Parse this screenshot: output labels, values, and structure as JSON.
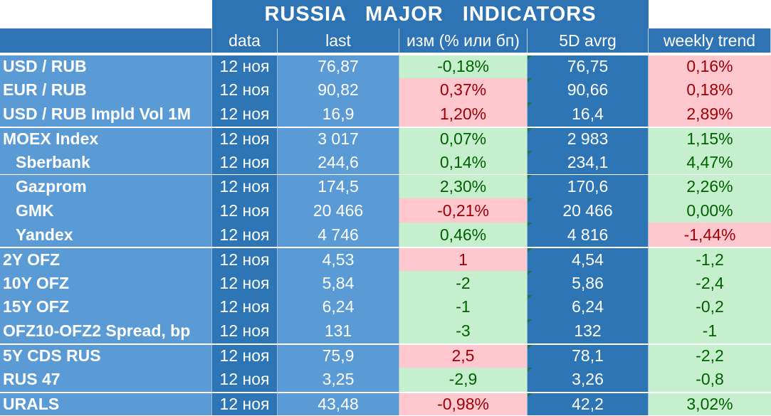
{
  "title": "RUSSIA   MAJOR   INDICATORS",
  "headers": [
    "data",
    "last",
    "изм (% или бп)",
    "5D avrg",
    "weekly trend"
  ],
  "rows": [
    {
      "name": "USD / RUB",
      "date": "12 ноя",
      "last": "76,87",
      "change": "-0,18%",
      "change_state": "green",
      "avg": "76,75",
      "trend": "0,16%",
      "trend_state": "red",
      "indent": false,
      "group_start": true
    },
    {
      "name": "EUR / RUB",
      "date": "12 ноя",
      "last": "90,82",
      "change": "0,37%",
      "change_state": "red",
      "avg": "90,66",
      "trend": "0,18%",
      "trend_state": "red",
      "indent": false,
      "group_start": false
    },
    {
      "name": "USD / RUB Impld Vol 1M",
      "date": "12 ноя",
      "last": "16,9",
      "change": "1,20%",
      "change_state": "red",
      "avg": "16,4",
      "trend": "2,89%",
      "trend_state": "red",
      "indent": false,
      "group_start": false
    },
    {
      "name": "MOEX Index",
      "date": "12 ноя",
      "last": "3 017",
      "change": "0,07%",
      "change_state": "green",
      "avg": "2 983",
      "trend": "1,15%",
      "trend_state": "green",
      "indent": false,
      "group_start": true
    },
    {
      "name": "Sberbank",
      "date": "12 ноя",
      "last": "244,6",
      "change": "0,14%",
      "change_state": "green",
      "avg": "234,1",
      "trend": "4,47%",
      "trend_state": "green",
      "indent": true,
      "group_start": false
    },
    {
      "name": "Gazprom",
      "date": "12 ноя",
      "last": "174,5",
      "change": "2,30%",
      "change_state": "green",
      "avg": "170,6",
      "trend": "2,26%",
      "trend_state": "green",
      "indent": true,
      "group_start": false
    },
    {
      "name": "GMK",
      "date": "12 ноя",
      "last": "20 466",
      "change": "-0,21%",
      "change_state": "red",
      "avg": "20 466",
      "trend": "0,00%",
      "trend_state": "green",
      "indent": true,
      "group_start": false
    },
    {
      "name": "Yandex",
      "date": "12 ноя",
      "last": "4 746",
      "change": "0,46%",
      "change_state": "green",
      "avg": "4 816",
      "trend": "-1,44%",
      "trend_state": "red",
      "indent": true,
      "group_start": false
    },
    {
      "name": "2Y OFZ",
      "date": "12 ноя",
      "last": "4,53",
      "change": "1",
      "change_state": "red",
      "avg": "4,54",
      "trend": "-1,2",
      "trend_state": "green",
      "indent": false,
      "group_start": true
    },
    {
      "name": "10Y OFZ",
      "date": "12 ноя",
      "last": "5,84",
      "change": "-2",
      "change_state": "green",
      "avg": "5,86",
      "trend": "-2,4",
      "trend_state": "green",
      "indent": false,
      "group_start": false
    },
    {
      "name": "15Y OFZ",
      "date": "12 ноя",
      "last": "6,24",
      "change": "-1",
      "change_state": "green",
      "avg": "6,24",
      "trend": "-0,2",
      "trend_state": "green",
      "indent": false,
      "group_start": false
    },
    {
      "name": "OFZ10-OFZ2 Spread, bp",
      "date": "12 ноя",
      "last": "131",
      "change": "-3",
      "change_state": "green",
      "avg": "132",
      "trend": "-1",
      "trend_state": "green",
      "indent": false,
      "group_start": false
    },
    {
      "name": "5Y CDS RUS",
      "date": "12 ноя",
      "last": "75,9",
      "change": "2,5",
      "change_state": "red",
      "avg": "78,1",
      "trend": "-2,2",
      "trend_state": "green",
      "indent": false,
      "group_start": true
    },
    {
      "name": "RUS 47",
      "date": "12 ноя",
      "last": "3,25",
      "change": "-2,9",
      "change_state": "green",
      "avg": "3,26",
      "trend": "-0,8",
      "trend_state": "green",
      "indent": false,
      "group_start": false
    },
    {
      "name": "URALS",
      "date": "12 ноя",
      "last": "43,48",
      "change": "-0,98%",
      "change_state": "red",
      "avg": "42,2",
      "trend": "3,02%",
      "trend_state": "green",
      "indent": false,
      "group_start": true
    }
  ],
  "colors": {
    "header_blue": "#2e74b5",
    "cell_blue_dark": "#2e75b6",
    "cell_blue_light": "#5b9bd5",
    "positive_fill": "#c6efce",
    "positive_text": "#006100",
    "negative_fill": "#ffc7ce",
    "negative_text": "#9c0006"
  }
}
